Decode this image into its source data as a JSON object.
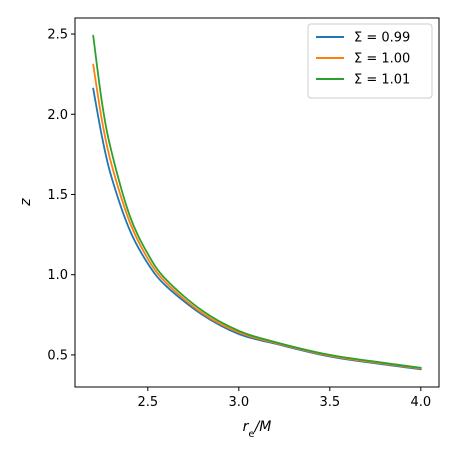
{
  "chart_data": {
    "type": "line",
    "xlabel": {
      "base": "r",
      "sub": "e",
      "rest": "/M"
    },
    "ylabel": "z",
    "xlim": [
      2.1,
      4.1
    ],
    "ylim": [
      0.3,
      2.6
    ],
    "xticks": [
      2.5,
      3.0,
      3.5,
      4.0
    ],
    "xtick_labels": [
      "2.5",
      "3.0",
      "3.5",
      "4.0"
    ],
    "yticks": [
      0.5,
      1.0,
      1.5,
      2.0,
      2.5
    ],
    "ytick_labels": [
      "0.5",
      "1.0",
      "1.5",
      "2.0",
      "2.5"
    ],
    "grid": false,
    "legend_position": "top-right",
    "x": [
      2.2,
      2.25,
      2.3,
      2.4,
      2.5,
      2.6,
      2.8,
      3.0,
      3.2,
      3.5,
      3.8,
      4.0
    ],
    "series": [
      {
        "name": "Σ = 0.99",
        "color": "#1f77b4",
        "values": [
          2.16,
          1.85,
          1.61,
          1.28,
          1.07,
          0.93,
          0.75,
          0.63,
          0.57,
          0.49,
          0.44,
          0.41
        ]
      },
      {
        "name": "Σ = 1.00",
        "color": "#ff7f0e",
        "values": [
          2.31,
          1.95,
          1.69,
          1.33,
          1.1,
          0.95,
          0.76,
          0.64,
          0.575,
          0.495,
          0.445,
          0.415
        ]
      },
      {
        "name": "Σ = 1.01",
        "color": "#2ca02c",
        "values": [
          2.49,
          2.06,
          1.77,
          1.37,
          1.13,
          0.97,
          0.775,
          0.65,
          0.58,
          0.5,
          0.45,
          0.42
        ]
      }
    ]
  }
}
